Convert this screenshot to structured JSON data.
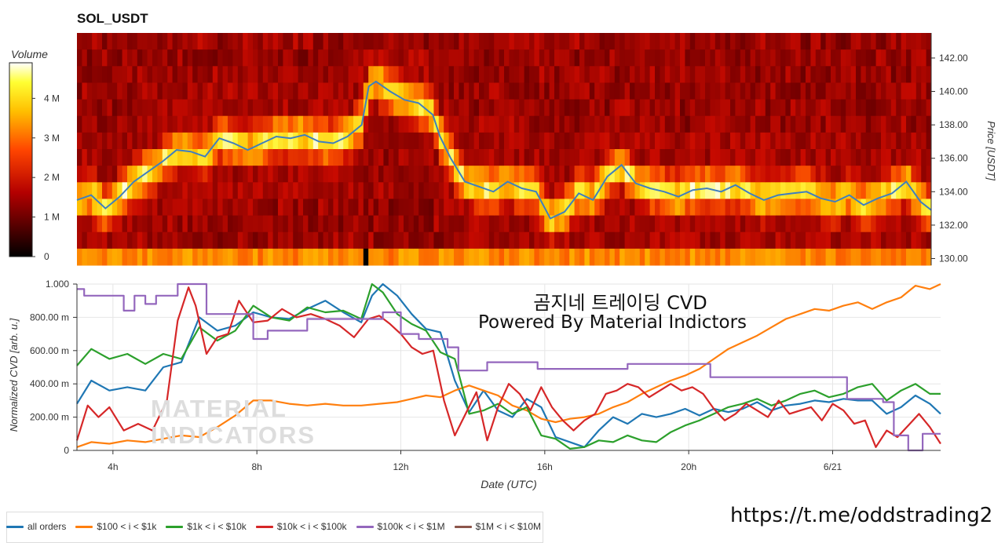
{
  "header": {
    "title": "SOL_USDT"
  },
  "colorbar": {
    "label": "Volume",
    "ticks": [
      "0",
      "1 M",
      "2 M",
      "3 M",
      "4 M"
    ],
    "tick_values": [
      0,
      1,
      2,
      3,
      4
    ],
    "max": 4.9
  },
  "overlay": {
    "line1": "곰지네 트레이딩 CVD",
    "line2": "Powered By Material Indictors",
    "watermark_line1": "MATERIAL",
    "watermark_line2": "INDICATORS",
    "telegram": "https://t.me/oddstrading2"
  },
  "colors": {
    "all_orders": "#1f77b4",
    "r100_1k": "#ff7f0e",
    "r1k_10k": "#2ca02c",
    "r10k_100k": "#d62728",
    "r100k_1m": "#9467bd",
    "r1m_10m": "#8c564b",
    "price_line": "#3f7fbf"
  },
  "chart_data": [
    {
      "type": "heatmap",
      "title": "SOL_USDT",
      "ylabel": "Price [USDT]",
      "colorbar_label": "Volume",
      "y_ticks": [
        "130.00",
        "132.00",
        "134.00",
        "136.00",
        "138.00",
        "140.00",
        "142.00"
      ],
      "ylim": [
        129.6,
        143.5
      ],
      "xlim_hours": [
        3,
        27
      ],
      "price_series": {
        "name": "Price",
        "hours": [
          3.0,
          3.4,
          3.8,
          4.2,
          4.6,
          5.0,
          5.4,
          5.8,
          6.2,
          6.6,
          7.0,
          7.4,
          7.8,
          8.2,
          8.6,
          9.0,
          9.4,
          9.8,
          10.2,
          10.6,
          11.0,
          11.2,
          11.4,
          11.8,
          12.2,
          12.6,
          13.0,
          13.2,
          13.5,
          13.9,
          14.3,
          14.7,
          15.1,
          15.5,
          15.9,
          16.3,
          16.7,
          17.1,
          17.5,
          17.9,
          18.3,
          18.7,
          19.1,
          19.5,
          19.9,
          20.3,
          20.7,
          21.1,
          21.5,
          21.9,
          22.3,
          22.7,
          23.1,
          23.5,
          23.9,
          24.3,
          24.7,
          25.1,
          25.5,
          25.9,
          26.3,
          26.7,
          27.0
        ],
        "prices": [
          133.5,
          133.8,
          133.0,
          133.7,
          134.6,
          135.2,
          135.8,
          136.5,
          136.4,
          136.1,
          137.2,
          136.9,
          136.5,
          136.9,
          137.3,
          137.2,
          137.4,
          137.0,
          136.9,
          137.3,
          138.0,
          140.3,
          140.6,
          140.0,
          139.5,
          139.3,
          138.6,
          137.3,
          136.0,
          134.6,
          134.3,
          134.0,
          134.6,
          134.2,
          134.0,
          132.4,
          132.8,
          133.9,
          133.5,
          134.9,
          135.6,
          134.5,
          134.2,
          134.0,
          133.7,
          134.1,
          134.2,
          134.0,
          134.4,
          133.9,
          133.5,
          133.8,
          133.9,
          134.0,
          133.6,
          133.4,
          133.8,
          133.2,
          133.6,
          133.9,
          134.6,
          133.4,
          132.9
        ]
      }
    },
    {
      "type": "line",
      "xlabel": "Date (UTC)",
      "ylabel": "Normalized CVD [arb. u.]",
      "ylim": [
        0,
        1
      ],
      "y_ticks": [
        "0",
        "200.00 m",
        "400.00 m",
        "600.00 m",
        "800.00 m",
        "1.000"
      ],
      "x_ticks": [
        "4h",
        "8h",
        "12h",
        "16h",
        "20h",
        "6/21"
      ],
      "x_tick_hours": [
        4,
        8,
        12,
        16,
        20,
        24
      ],
      "xlim_hours": [
        3,
        27
      ],
      "series": [
        {
          "name": "all orders",
          "color_key": "all_orders",
          "x": [
            3.0,
            3.4,
            3.9,
            4.4,
            4.9,
            5.4,
            5.9,
            6.4,
            6.9,
            7.4,
            7.9,
            8.4,
            8.9,
            9.4,
            9.9,
            10.4,
            10.9,
            11.2,
            11.5,
            11.9,
            12.3,
            12.7,
            13.1,
            13.5,
            13.9,
            14.3,
            14.7,
            15.1,
            15.5,
            15.9,
            16.3,
            16.7,
            17.1,
            17.5,
            17.9,
            18.3,
            18.7,
            19.1,
            19.5,
            19.9,
            20.3,
            20.7,
            21.1,
            21.5,
            21.9,
            22.3,
            22.7,
            23.1,
            23.5,
            23.9,
            24.3,
            24.7,
            25.1,
            25.5,
            25.9,
            26.3,
            26.7,
            27.0
          ],
          "values": [
            0.28,
            0.42,
            0.36,
            0.38,
            0.36,
            0.5,
            0.53,
            0.8,
            0.72,
            0.75,
            0.83,
            0.8,
            0.79,
            0.85,
            0.9,
            0.83,
            0.77,
            0.93,
            1.0,
            0.93,
            0.82,
            0.73,
            0.71,
            0.42,
            0.23,
            0.36,
            0.24,
            0.2,
            0.31,
            0.26,
            0.08,
            0.05,
            0.02,
            0.12,
            0.2,
            0.16,
            0.22,
            0.2,
            0.22,
            0.25,
            0.21,
            0.25,
            0.23,
            0.25,
            0.29,
            0.24,
            0.27,
            0.28,
            0.3,
            0.29,
            0.31,
            0.3,
            0.3,
            0.22,
            0.26,
            0.33,
            0.28,
            0.22
          ]
        },
        {
          "name": "$100 < i < $1k",
          "color_key": "r100_1k",
          "x": [
            3.0,
            3.4,
            3.9,
            4.4,
            4.9,
            5.4,
            5.9,
            6.4,
            6.9,
            7.4,
            7.9,
            8.4,
            8.9,
            9.4,
            9.9,
            10.4,
            10.9,
            11.4,
            11.9,
            12.3,
            12.7,
            13.1,
            13.5,
            13.9,
            14.3,
            14.7,
            15.1,
            15.5,
            15.9,
            16.3,
            16.7,
            17.1,
            17.5,
            17.9,
            18.3,
            18.7,
            19.1,
            19.5,
            19.9,
            20.3,
            20.7,
            21.1,
            21.5,
            21.9,
            22.3,
            22.7,
            23.1,
            23.5,
            23.9,
            24.3,
            24.7,
            25.1,
            25.5,
            25.9,
            26.3,
            26.7,
            27.0
          ],
          "values": [
            0.02,
            0.05,
            0.04,
            0.06,
            0.05,
            0.07,
            0.09,
            0.08,
            0.14,
            0.21,
            0.3,
            0.3,
            0.28,
            0.27,
            0.28,
            0.27,
            0.27,
            0.28,
            0.29,
            0.31,
            0.33,
            0.32,
            0.36,
            0.39,
            0.36,
            0.33,
            0.27,
            0.24,
            0.19,
            0.17,
            0.19,
            0.2,
            0.22,
            0.26,
            0.29,
            0.34,
            0.38,
            0.42,
            0.45,
            0.49,
            0.55,
            0.61,
            0.65,
            0.69,
            0.74,
            0.79,
            0.82,
            0.85,
            0.84,
            0.87,
            0.89,
            0.85,
            0.89,
            0.92,
            0.99,
            0.97,
            1.0
          ]
        },
        {
          "name": "$1k < i < $10k",
          "color_key": "r1k_10k",
          "x": [
            3.0,
            3.4,
            3.9,
            4.4,
            4.9,
            5.4,
            5.9,
            6.4,
            6.9,
            7.4,
            7.9,
            8.4,
            8.9,
            9.4,
            9.9,
            10.4,
            10.9,
            11.2,
            11.5,
            11.9,
            12.3,
            12.7,
            13.1,
            13.5,
            13.9,
            14.3,
            14.7,
            15.1,
            15.5,
            15.9,
            16.3,
            16.7,
            17.1,
            17.5,
            17.9,
            18.3,
            18.7,
            19.1,
            19.5,
            19.9,
            20.3,
            20.7,
            21.1,
            21.5,
            21.9,
            22.3,
            22.7,
            23.1,
            23.5,
            23.9,
            24.3,
            24.7,
            25.1,
            25.5,
            25.9,
            26.3,
            26.7,
            27.0
          ],
          "values": [
            0.51,
            0.61,
            0.55,
            0.58,
            0.52,
            0.58,
            0.55,
            0.74,
            0.66,
            0.72,
            0.87,
            0.8,
            0.78,
            0.86,
            0.83,
            0.84,
            0.79,
            1.0,
            0.95,
            0.82,
            0.76,
            0.72,
            0.59,
            0.55,
            0.22,
            0.24,
            0.28,
            0.22,
            0.26,
            0.09,
            0.07,
            0.01,
            0.02,
            0.06,
            0.05,
            0.09,
            0.06,
            0.05,
            0.11,
            0.15,
            0.18,
            0.22,
            0.26,
            0.28,
            0.31,
            0.27,
            0.3,
            0.34,
            0.36,
            0.32,
            0.34,
            0.38,
            0.4,
            0.3,
            0.36,
            0.4,
            0.34,
            0.34
          ]
        },
        {
          "name": "$10k < i < $100k",
          "color_key": "r10k_100k",
          "x": [
            3.0,
            3.3,
            3.6,
            3.9,
            4.3,
            4.7,
            5.1,
            5.5,
            5.8,
            6.1,
            6.3,
            6.6,
            6.9,
            7.2,
            7.5,
            7.9,
            8.3,
            8.7,
            9.1,
            9.5,
            9.9,
            10.3,
            10.7,
            11.1,
            11.4,
            11.7,
            12.0,
            12.3,
            12.6,
            12.9,
            13.2,
            13.5,
            13.8,
            14.1,
            14.4,
            14.7,
            15.0,
            15.3,
            15.6,
            15.9,
            16.2,
            16.5,
            16.8,
            17.1,
            17.4,
            17.7,
            18.0,
            18.3,
            18.6,
            18.9,
            19.2,
            19.5,
            19.8,
            20.1,
            20.4,
            20.7,
            21.0,
            21.3,
            21.6,
            21.9,
            22.2,
            22.5,
            22.8,
            23.1,
            23.4,
            23.7,
            24.0,
            24.3,
            24.6,
            24.9,
            25.2,
            25.5,
            25.8,
            26.1,
            26.4,
            26.7,
            27.0
          ],
          "values": [
            0.06,
            0.27,
            0.2,
            0.26,
            0.12,
            0.16,
            0.12,
            0.3,
            0.78,
            0.98,
            0.87,
            0.58,
            0.68,
            0.7,
            0.9,
            0.77,
            0.78,
            0.85,
            0.8,
            0.82,
            0.79,
            0.75,
            0.68,
            0.79,
            0.81,
            0.76,
            0.7,
            0.62,
            0.58,
            0.6,
            0.3,
            0.09,
            0.22,
            0.35,
            0.06,
            0.26,
            0.4,
            0.34,
            0.24,
            0.38,
            0.26,
            0.18,
            0.12,
            0.18,
            0.22,
            0.34,
            0.36,
            0.4,
            0.38,
            0.32,
            0.36,
            0.4,
            0.36,
            0.38,
            0.34,
            0.25,
            0.18,
            0.22,
            0.28,
            0.24,
            0.2,
            0.3,
            0.22,
            0.24,
            0.26,
            0.18,
            0.28,
            0.24,
            0.16,
            0.18,
            0.02,
            0.12,
            0.08,
            0.15,
            0.22,
            0.14,
            0.04
          ]
        },
        {
          "name": "$100k < i < $1M",
          "color_key": "r100k_1m",
          "step": true,
          "x": [
            3.0,
            3.2,
            3.8,
            4.3,
            4.6,
            4.9,
            5.2,
            5.5,
            5.8,
            6.3,
            6.6,
            7.2,
            7.9,
            8.3,
            8.5,
            9.0,
            9.4,
            10.0,
            10.5,
            11.0,
            11.5,
            12.0,
            12.5,
            13.0,
            13.3,
            13.6,
            13.9,
            14.4,
            14.8,
            15.3,
            15.8,
            16.3,
            17.0,
            17.5,
            18.3,
            19.0,
            20.0,
            20.6,
            21.5,
            22.5,
            23.2,
            23.9,
            24.4,
            25.0,
            25.2,
            25.4,
            25.7,
            26.1,
            26.5,
            27.0
          ],
          "values": [
            0.97,
            0.93,
            0.93,
            0.84,
            0.93,
            0.88,
            0.93,
            0.93,
            1.0,
            1.0,
            0.82,
            0.82,
            0.67,
            0.72,
            0.72,
            0.72,
            0.79,
            0.79,
            0.79,
            0.79,
            0.83,
            0.7,
            0.67,
            0.67,
            0.62,
            0.48,
            0.48,
            0.53,
            0.53,
            0.53,
            0.49,
            0.49,
            0.49,
            0.49,
            0.52,
            0.52,
            0.52,
            0.44,
            0.44,
            0.44,
            0.44,
            0.44,
            0.31,
            0.31,
            0.31,
            0.29,
            0.09,
            0.0,
            0.1,
            0.1
          ]
        },
        {
          "name": "$1M < i < $10M",
          "color_key": "r1m_10m",
          "x": [],
          "values": []
        }
      ]
    }
  ]
}
